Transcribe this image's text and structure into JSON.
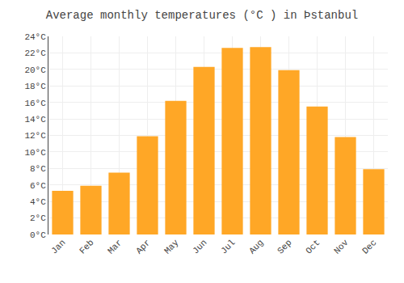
{
  "chart_data": {
    "type": "bar",
    "title": "Average monthly temperatures (°C ) in Þstanbul",
    "categories": [
      "Jan",
      "Feb",
      "Mar",
      "Apr",
      "May",
      "Jun",
      "Jul",
      "Aug",
      "Sep",
      "Oct",
      "Nov",
      "Dec"
    ],
    "values": [
      5.3,
      5.9,
      7.5,
      11.9,
      16.2,
      20.3,
      22.6,
      22.7,
      19.9,
      15.5,
      11.8,
      7.9
    ],
    "color": "#FFA726",
    "ylim": [
      0,
      24
    ],
    "yticks": [
      {
        "value": 0,
        "label": "0°C"
      },
      {
        "value": 2,
        "label": "2°C"
      },
      {
        "value": 4,
        "label": "4°C"
      },
      {
        "value": 6,
        "label": "6°C"
      },
      {
        "value": 8,
        "label": "8°C"
      },
      {
        "value": 10,
        "label": "10°C"
      },
      {
        "value": 12,
        "label": "12°C"
      },
      {
        "value": 14,
        "label": "14°C"
      },
      {
        "value": 16,
        "label": "16°C"
      },
      {
        "value": 18,
        "label": "18°C"
      },
      {
        "value": 20,
        "label": "20°C"
      },
      {
        "value": 22,
        "label": "22°C"
      },
      {
        "value": 24,
        "label": "24°C"
      }
    ],
    "grid": true
  }
}
